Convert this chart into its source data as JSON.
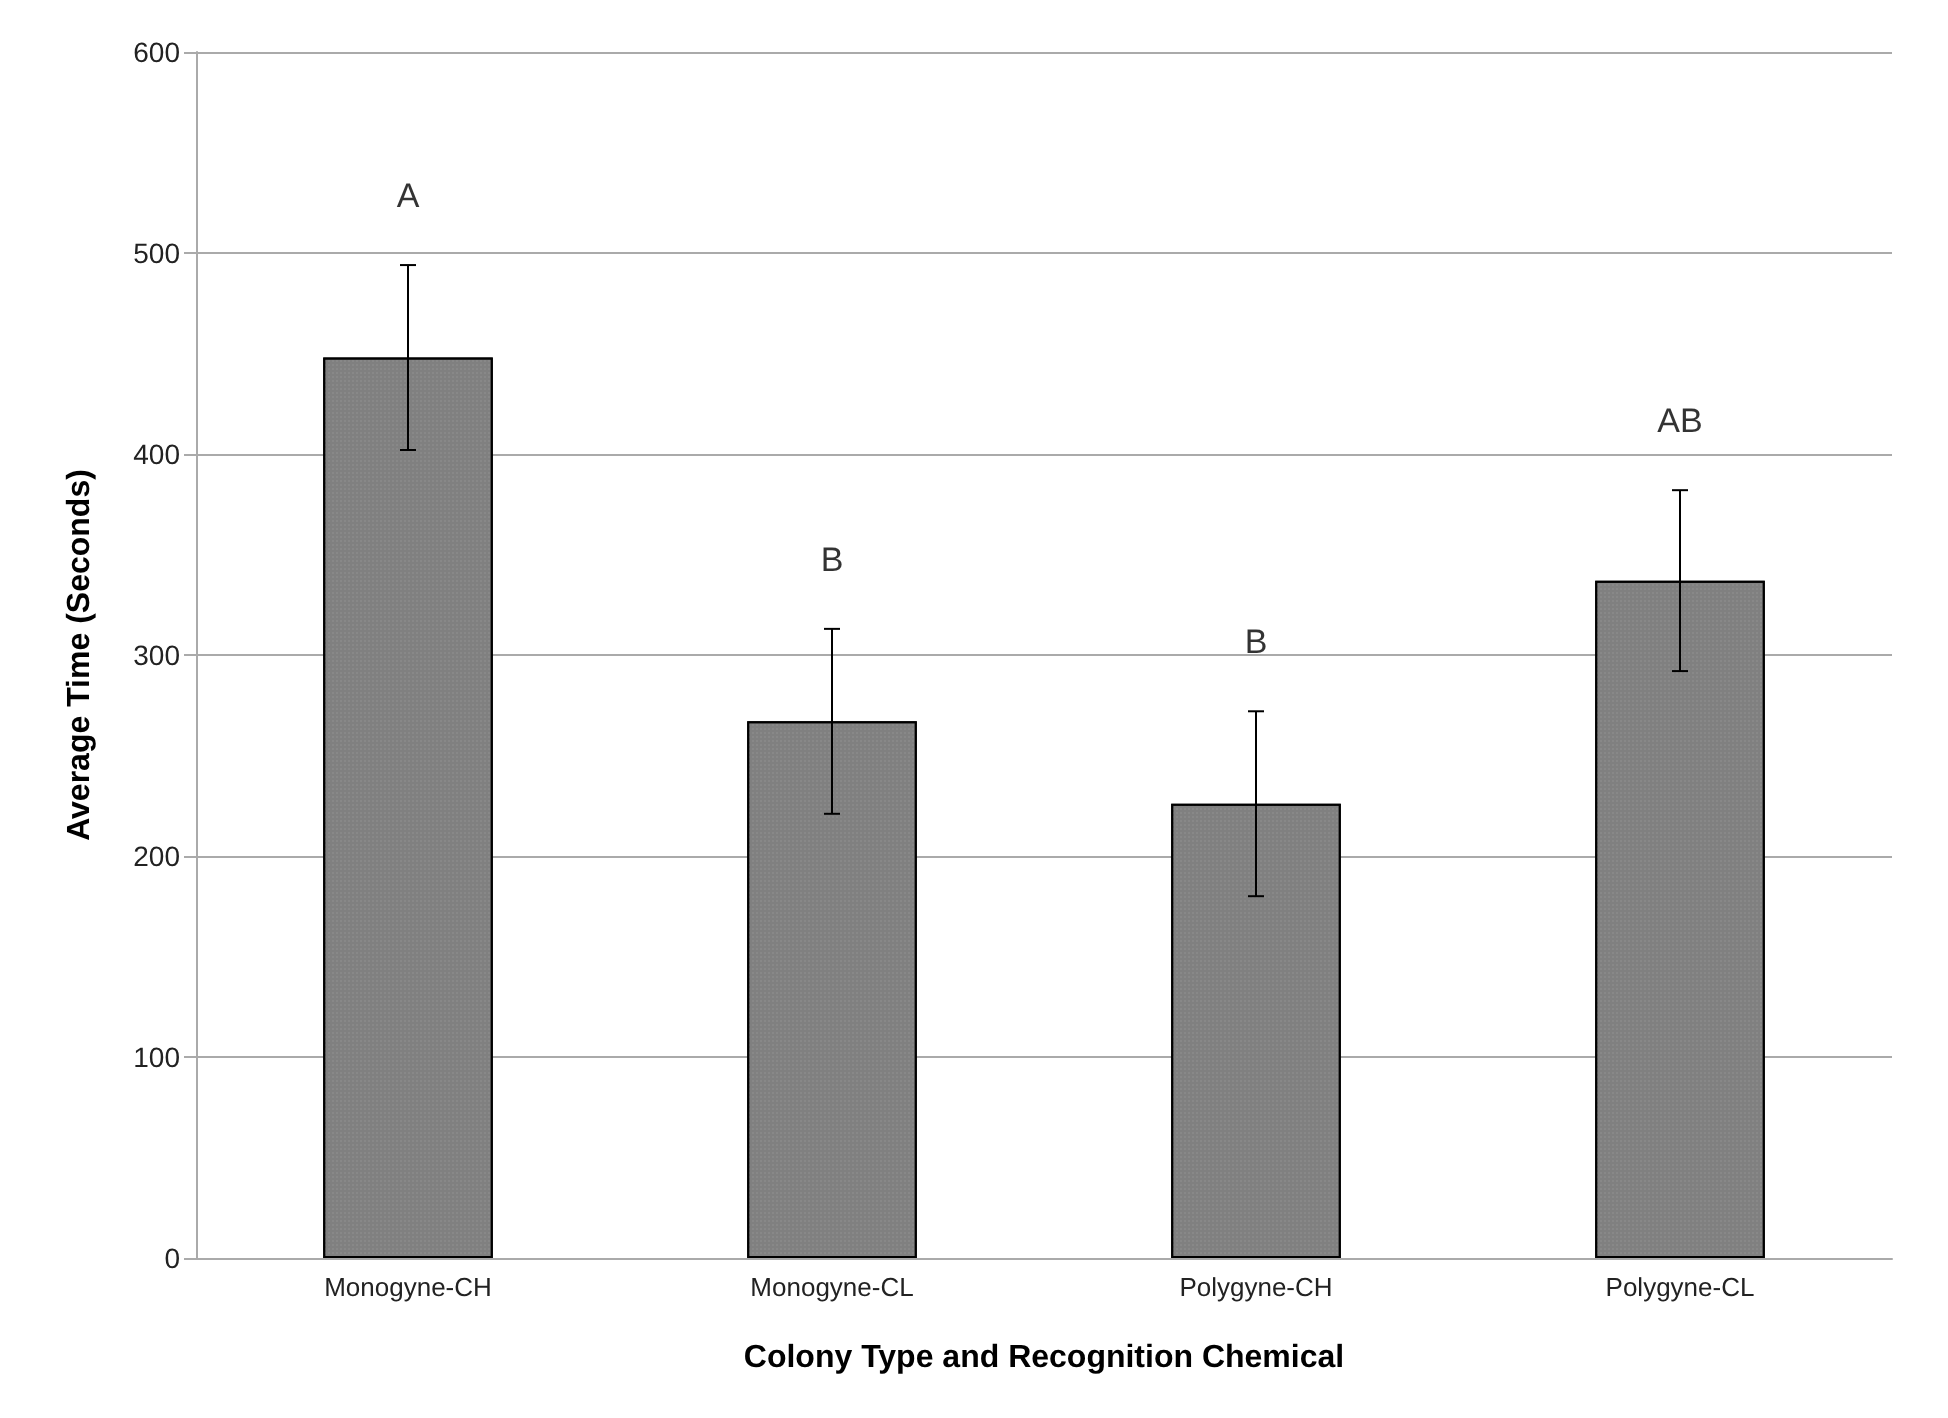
{
  "chart_data": {
    "type": "bar",
    "xlabel": "Colony Type and Recognition Chemical",
    "ylabel": "Average Time (Seconds)",
    "categories": [
      "Monogyne-CH",
      "Monogyne-CL",
      "Polygyne-CH",
      "Polygyne-CL"
    ],
    "values": [
      448,
      267,
      226,
      337
    ],
    "color": "#808080",
    "errors": [
      46,
      46,
      46,
      45
    ],
    "ylim": [
      0,
      600
    ],
    "yticks": [
      0,
      100,
      200,
      300,
      400,
      500,
      600
    ],
    "grid": "y",
    "annotations": [
      "A",
      "B",
      "B",
      "AB"
    ]
  }
}
